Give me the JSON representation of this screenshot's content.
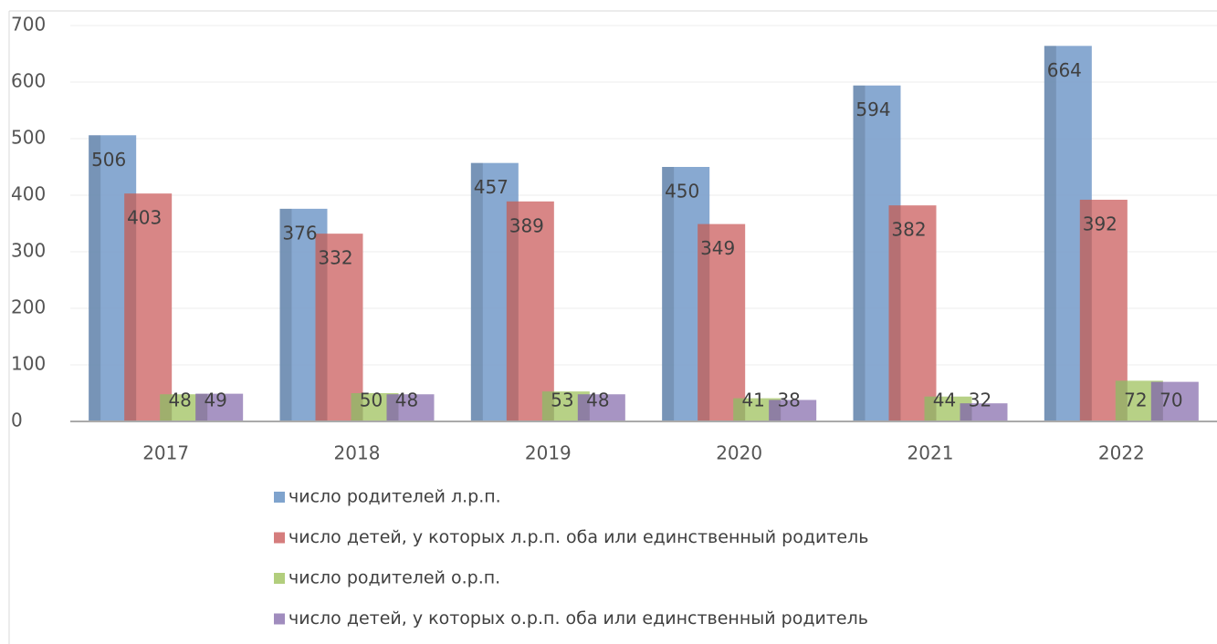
{
  "chart_data": {
    "type": "bar",
    "categories": [
      "2017",
      "2018",
      "2019",
      "2020",
      "2021",
      "2022"
    ],
    "series": [
      {
        "name": "число родителей л.р.п.",
        "color": "#7fa3cd",
        "values": [
          506,
          376,
          457,
          450,
          594,
          664
        ]
      },
      {
        "name": "число детей, у которых л.р.п. оба или единственный родитель",
        "color": "#d57d7d",
        "values": [
          403,
          332,
          389,
          349,
          382,
          392
        ]
      },
      {
        "name": "число родителей о.р.п.",
        "color": "#b2ce7d",
        "values": [
          48,
          50,
          53,
          41,
          44,
          72
        ]
      },
      {
        "name": "число детей, у которых о.р.п. оба или единственный родитель",
        "color": "#a08cbe",
        "values": [
          49,
          48,
          48,
          38,
          32,
          70
        ]
      }
    ],
    "ylim": [
      0,
      700
    ],
    "yticks": [
      0,
      100,
      200,
      300,
      400,
      500,
      600,
      700
    ],
    "grid": true,
    "legend": "bottom"
  }
}
